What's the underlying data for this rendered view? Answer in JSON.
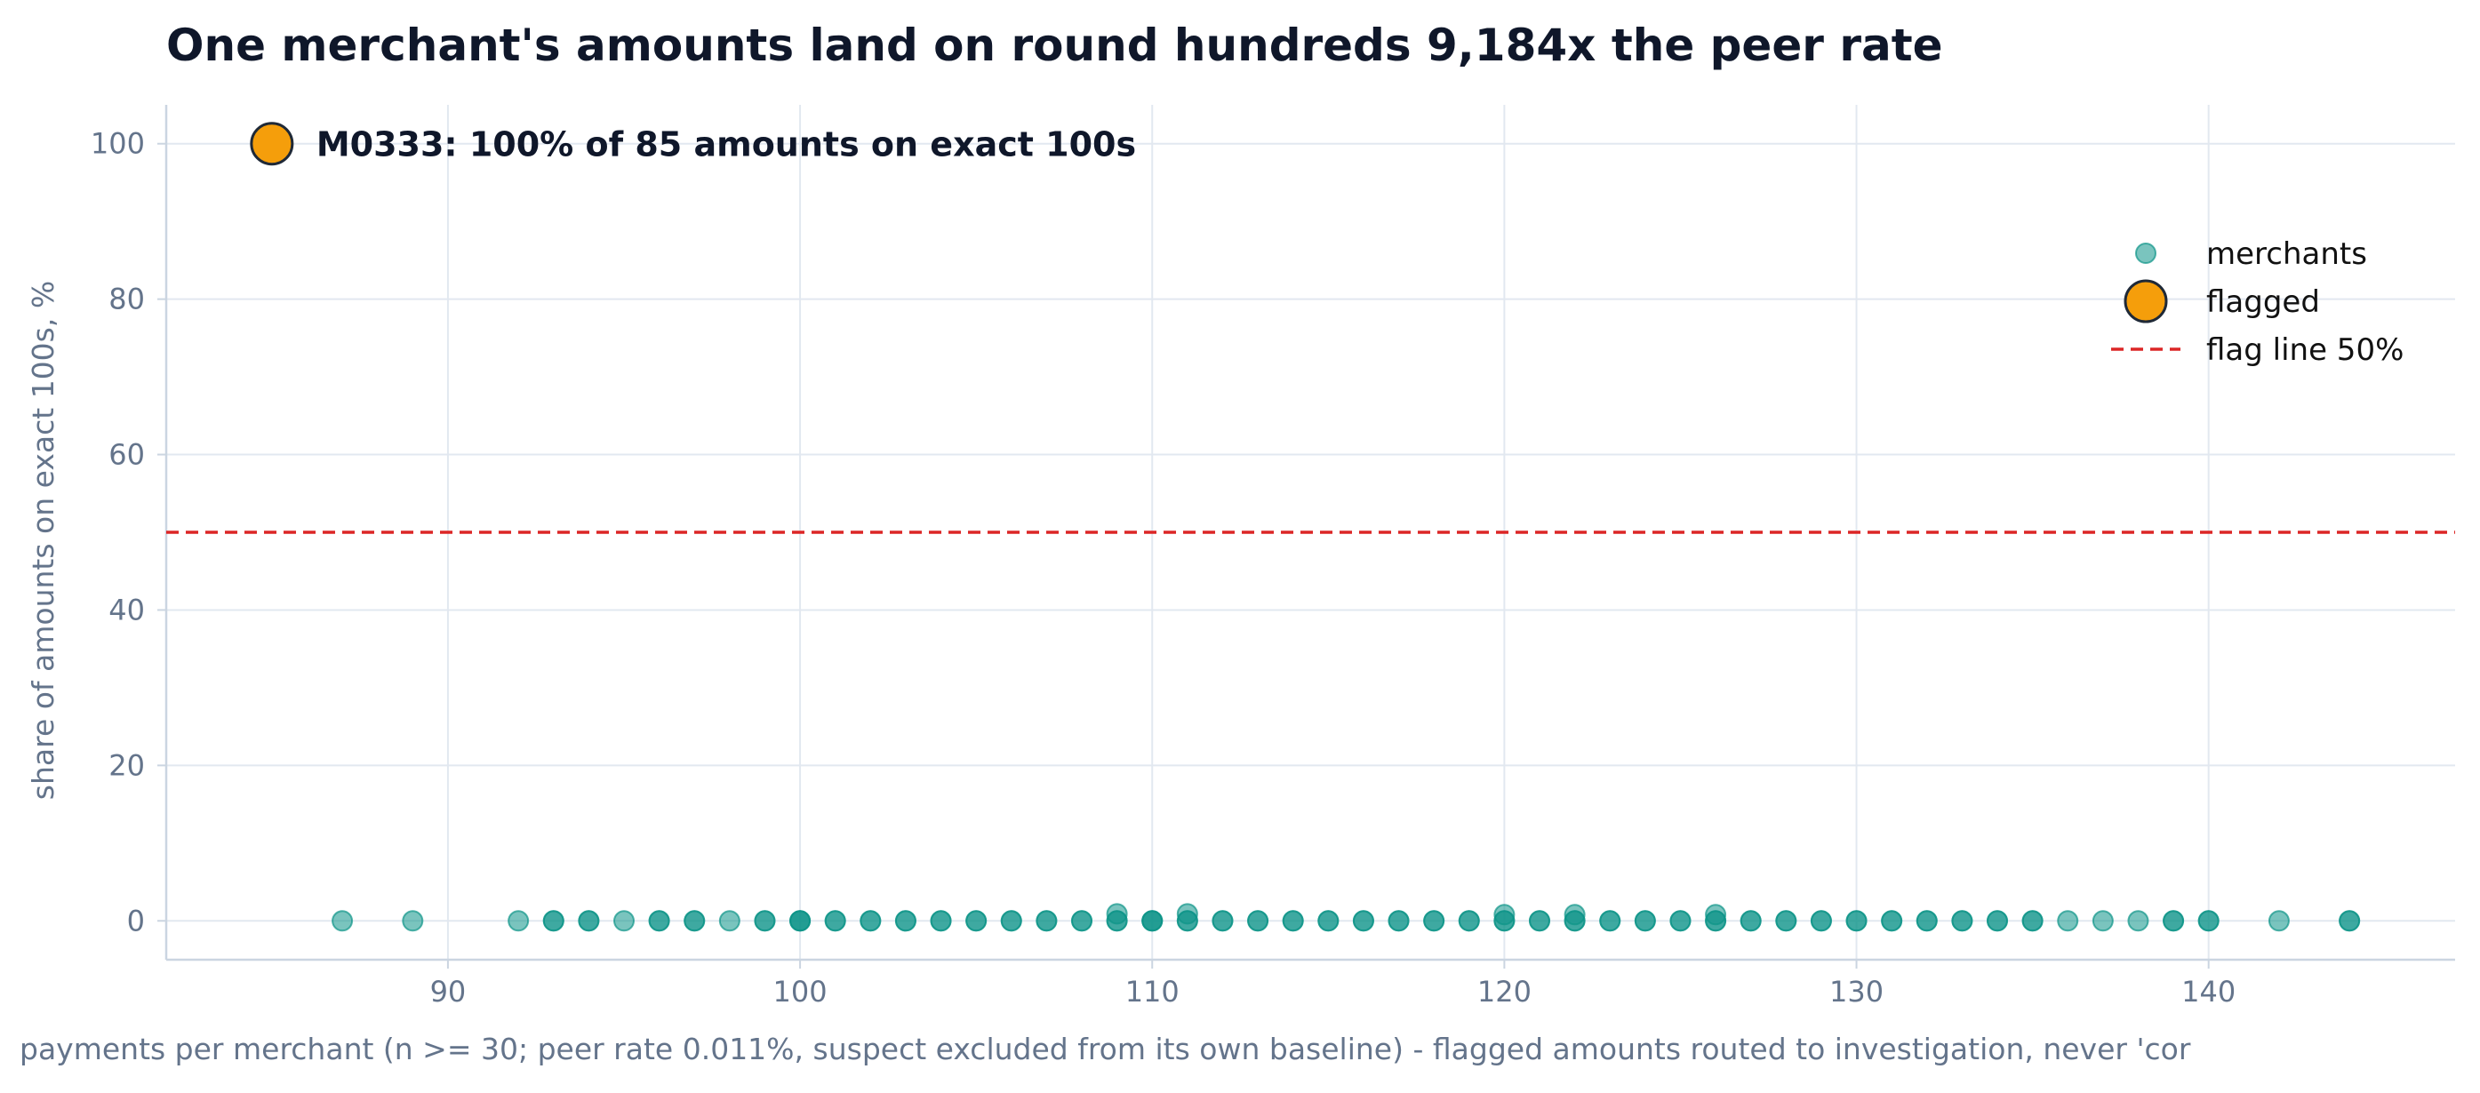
{
  "chart_data": {
    "type": "scatter",
    "title": "One merchant's amounts land on round hundreds 9,184x the peer rate",
    "xlabel": "payments per merchant (n >= 30; peer rate 0.011%, suspect excluded from its own baseline) - flagged amounts routed to investigation, never 'cor",
    "ylabel": "share of amounts on exact 100s, %",
    "xlim": [
      82,
      147
    ],
    "ylim": [
      -5,
      105
    ],
    "x_ticks": [
      90,
      100,
      110,
      120,
      130,
      140
    ],
    "y_ticks": [
      0,
      20,
      40,
      60,
      80,
      100
    ],
    "grid": true,
    "legend_position": "upper-right",
    "legend": [
      "merchants",
      "flagged",
      "flag line 50%"
    ],
    "threshold": {
      "name": "flag line 50%",
      "y": 50
    },
    "series": [
      {
        "name": "merchants",
        "color": "#0d9488",
        "points": [
          [
            87,
            0
          ],
          [
            89,
            0
          ],
          [
            92,
            0
          ],
          [
            93,
            0
          ],
          [
            93,
            0
          ],
          [
            94,
            0
          ],
          [
            94,
            0
          ],
          [
            95,
            0
          ],
          [
            96,
            0
          ],
          [
            96,
            0
          ],
          [
            97,
            0
          ],
          [
            97,
            0
          ],
          [
            98,
            0
          ],
          [
            99,
            0
          ],
          [
            99,
            0
          ],
          [
            100,
            0
          ],
          [
            100,
            0
          ],
          [
            100,
            0
          ],
          [
            101,
            0
          ],
          [
            101,
            0
          ],
          [
            102,
            0
          ],
          [
            102,
            0
          ],
          [
            103,
            0
          ],
          [
            103,
            0
          ],
          [
            104,
            0
          ],
          [
            104,
            0
          ],
          [
            105,
            0
          ],
          [
            105,
            0
          ],
          [
            106,
            0
          ],
          [
            106,
            0
          ],
          [
            107,
            0
          ],
          [
            107,
            0
          ],
          [
            108,
            0
          ],
          [
            108,
            0
          ],
          [
            109,
            0
          ],
          [
            109,
            0
          ],
          [
            109,
            0.9
          ],
          [
            110,
            0
          ],
          [
            110,
            0
          ],
          [
            110,
            0
          ],
          [
            111,
            0
          ],
          [
            111,
            0
          ],
          [
            111,
            0.9
          ],
          [
            112,
            0
          ],
          [
            112,
            0
          ],
          [
            113,
            0
          ],
          [
            113,
            0
          ],
          [
            114,
            0
          ],
          [
            114,
            0
          ],
          [
            115,
            0
          ],
          [
            115,
            0
          ],
          [
            116,
            0
          ],
          [
            116,
            0
          ],
          [
            117,
            0
          ],
          [
            117,
            0
          ],
          [
            118,
            0
          ],
          [
            118,
            0
          ],
          [
            119,
            0
          ],
          [
            119,
            0
          ],
          [
            120,
            0
          ],
          [
            120,
            0
          ],
          [
            120,
            0.8
          ],
          [
            121,
            0
          ],
          [
            121,
            0
          ],
          [
            122,
            0
          ],
          [
            122,
            0
          ],
          [
            122,
            0.8
          ],
          [
            123,
            0
          ],
          [
            123,
            0
          ],
          [
            124,
            0
          ],
          [
            124,
            0
          ],
          [
            125,
            0
          ],
          [
            125,
            0
          ],
          [
            126,
            0
          ],
          [
            126,
            0
          ],
          [
            126,
            0.8
          ],
          [
            127,
            0
          ],
          [
            127,
            0
          ],
          [
            128,
            0
          ],
          [
            128,
            0
          ],
          [
            129,
            0
          ],
          [
            129,
            0
          ],
          [
            130,
            0
          ],
          [
            130,
            0
          ],
          [
            131,
            0
          ],
          [
            131,
            0
          ],
          [
            132,
            0
          ],
          [
            132,
            0
          ],
          [
            133,
            0
          ],
          [
            133,
            0
          ],
          [
            134,
            0
          ],
          [
            134,
            0
          ],
          [
            135,
            0
          ],
          [
            135,
            0
          ],
          [
            136,
            0
          ],
          [
            137,
            0
          ],
          [
            138,
            0
          ],
          [
            139,
            0
          ],
          [
            139,
            0
          ],
          [
            140,
            0
          ],
          [
            140,
            0
          ],
          [
            142,
            0
          ],
          [
            144,
            0
          ],
          [
            144,
            0
          ]
        ]
      },
      {
        "name": "flagged",
        "color": "#f59e0b",
        "points": [
          [
            85,
            100
          ]
        ]
      }
    ],
    "annotations": [
      {
        "text": "M0333: 100% of 85 amounts on exact 100s",
        "x": 85,
        "y": 100
      }
    ],
    "colors": {
      "threshold": "#dc2626",
      "grid": "#e2e8f0",
      "flagged_edge": "#1f2937",
      "title": "#0f172a",
      "axis_text": "#64748b"
    }
  }
}
